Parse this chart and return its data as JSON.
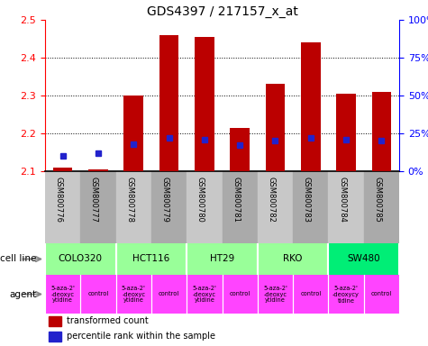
{
  "title": "GDS4397 / 217157_x_at",
  "samples": [
    "GSM800776",
    "GSM800777",
    "GSM800778",
    "GSM800779",
    "GSM800780",
    "GSM800781",
    "GSM800782",
    "GSM800783",
    "GSM800784",
    "GSM800785"
  ],
  "red_values": [
    2.11,
    2.105,
    2.3,
    2.46,
    2.455,
    2.215,
    2.33,
    2.44,
    2.305,
    2.31
  ],
  "blue_pct": [
    10,
    12,
    18,
    22,
    21,
    17,
    20,
    22,
    21,
    20
  ],
  "y_min": 2.1,
  "y_max": 2.5,
  "cell_lines": [
    {
      "name": "COLO320",
      "start": 0,
      "end": 2,
      "color": "#99FF99"
    },
    {
      "name": "HCT116",
      "start": 2,
      "end": 4,
      "color": "#99FF99"
    },
    {
      "name": "HT29",
      "start": 4,
      "end": 6,
      "color": "#99FF99"
    },
    {
      "name": "RKO",
      "start": 6,
      "end": 8,
      "color": "#99FF99"
    },
    {
      "name": "SW480",
      "start": 8,
      "end": 10,
      "color": "#00EE76"
    }
  ],
  "agents": [
    {
      "name": "5-aza-2'\n-deoxyc\nytidine",
      "start": 0,
      "end": 1,
      "color": "#FF44FF"
    },
    {
      "name": "control",
      "start": 1,
      "end": 2,
      "color": "#FF44FF"
    },
    {
      "name": "5-aza-2'\n-deoxyc\nytidine",
      "start": 2,
      "end": 3,
      "color": "#FF44FF"
    },
    {
      "name": "control",
      "start": 3,
      "end": 4,
      "color": "#FF44FF"
    },
    {
      "name": "5-aza-2'\n-deoxyc\nytidine",
      "start": 4,
      "end": 5,
      "color": "#FF44FF"
    },
    {
      "name": "control",
      "start": 5,
      "end": 6,
      "color": "#FF44FF"
    },
    {
      "name": "5-aza-2'\n-deoxyc\nytidine",
      "start": 6,
      "end": 7,
      "color": "#FF44FF"
    },
    {
      "name": "control",
      "start": 7,
      "end": 8,
      "color": "#FF44FF"
    },
    {
      "name": "5-aza-2'\n-deoxycy\ntidine",
      "start": 8,
      "end": 9,
      "color": "#FF44FF"
    },
    {
      "name": "control",
      "start": 9,
      "end": 10,
      "color": "#FF44FF"
    }
  ],
  "gsm_bg_odd": "#C8C8C8",
  "gsm_bg_even": "#AAAAAA",
  "bar_color": "#BB0000",
  "dot_color": "#2222CC",
  "label_cell_line": "cell line",
  "label_agent": "agent",
  "legend_red": "transformed count",
  "legend_blue": "percentile rank within the sample"
}
